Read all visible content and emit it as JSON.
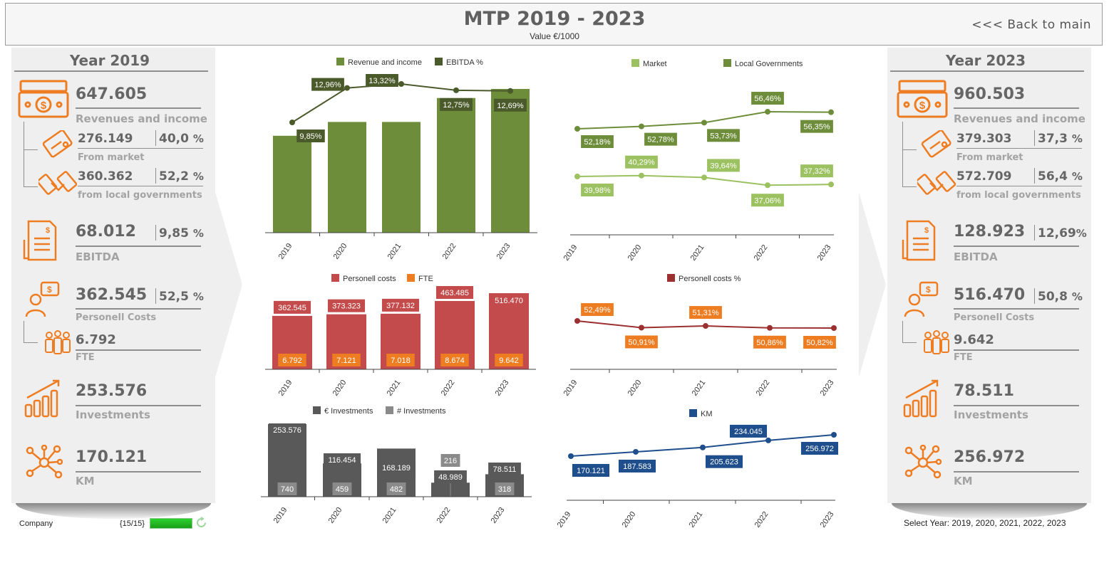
{
  "header": {
    "title": "MTP 2019 - 2023",
    "subtitle": "Value €/1000",
    "back": "<<< Back to main"
  },
  "left": {
    "year_title": "Year 2019",
    "revenues": "647.605",
    "revenues_label": "Revenues and income",
    "market": "276.149",
    "market_pct": "40,0",
    "market_label": "From market",
    "gov": "360.362",
    "gov_pct": "52,2",
    "gov_label": "from local governments",
    "ebitda": "68.012",
    "ebitda_pct": "9,85",
    "ebitda_label": "EBITDA",
    "personell": "362.545",
    "personell_pct": "52,5",
    "personell_label": "Personell Costs",
    "fte": "6.792",
    "fte_label": "FTE",
    "investments": "253.576",
    "investments_label": "Investments",
    "km": "170.121",
    "km_label": "KM",
    "pct_sign": "%"
  },
  "right": {
    "year_title": "Year 2023",
    "revenues": "960.503",
    "revenues_label": "Revenues and income",
    "market": "379.303",
    "market_pct": "37,3",
    "market_label": "From market",
    "gov": "572.709",
    "gov_pct": "56,4",
    "gov_label": "from local governments",
    "ebitda": "128.923",
    "ebitda_pct": "12,69",
    "ebitda_label": "EBITDA",
    "personell": "516.470",
    "personell_pct": "50,8",
    "personell_label": "Personell Costs",
    "fte": "9.642",
    "fte_label": "FTE",
    "investments": "78.511",
    "investments_label": "Investments",
    "km": "256.972",
    "km_label": "KM",
    "pct_sign": "%"
  },
  "footer": {
    "company": "Company",
    "counter": "{15/15}",
    "select_year": "Select Year: 2019, 2020, 2021, 2022, 2023"
  },
  "colors": {
    "accent_orange": "#ee7d22",
    "green_dark": "#6d8d3a",
    "green_light": "#9bc160",
    "red": "#c44b4b",
    "blue": "#1f4e8c",
    "gray_dark": "#595959"
  },
  "chart_data": [
    {
      "id": "revenue",
      "type": "bar",
      "categories": [
        "2019",
        "2020",
        "2021",
        "2022",
        "2023"
      ],
      "series": [
        {
          "name": "Revenue and income",
          "type": "bar",
          "values": [
            647.605,
            740,
            740,
            900,
            960.503
          ]
        },
        {
          "name": "EBITDA %",
          "type": "line",
          "values": [
            9.85,
            12.96,
            13.32,
            12.75,
            12.69
          ],
          "labels": [
            "9,85%",
            "12,96%",
            "13,32%",
            "12,75%",
            "12,69%"
          ]
        }
      ]
    },
    {
      "id": "market_gov",
      "type": "line",
      "categories": [
        "2019",
        "2020",
        "2021",
        "2022",
        "2023"
      ],
      "series": [
        {
          "name": "Market",
          "values": [
            39.98,
            40.29,
            39.64,
            37.06,
            37.32
          ],
          "labels": [
            "39,98%",
            "40,29%",
            "39,64%",
            "37,06%",
            "37,32%"
          ]
        },
        {
          "name": "Local Governments",
          "values": [
            52.18,
            52.78,
            53.73,
            56.46,
            56.35
          ],
          "labels": [
            "52,18%",
            "52,78%",
            "53,73%",
            "56,46%",
            "56,35%"
          ]
        }
      ]
    },
    {
      "id": "personell",
      "type": "bar",
      "categories": [
        "2019",
        "2020",
        "2021",
        "2022",
        "2023"
      ],
      "series": [
        {
          "name": "Personell costs",
          "values": [
            362545,
            373323,
            377132,
            463485,
            516470
          ],
          "labels": [
            "362.545",
            "373.323",
            "377.132",
            "463.485",
            "516.470"
          ]
        },
        {
          "name": "FTE",
          "values": [
            6792,
            7121,
            7018,
            8674,
            9642
          ],
          "labels": [
            "6.792",
            "7.121",
            "7.018",
            "8.674",
            "9.642"
          ]
        }
      ]
    },
    {
      "id": "personell_pct",
      "type": "line",
      "categories": [
        "2019",
        "2020",
        "2021",
        "2022",
        "2023"
      ],
      "series": [
        {
          "name": "Personell costs %",
          "values": [
            52.49,
            50.91,
            51.31,
            50.86,
            50.82
          ],
          "labels": [
            "52,49%",
            "50,91%",
            "51,31%",
            "50,86%",
            "50,82%"
          ]
        }
      ]
    },
    {
      "id": "investments",
      "type": "bar",
      "categories": [
        "2019",
        "2020",
        "2021",
        "2022",
        "2023"
      ],
      "series": [
        {
          "name": "€ Investments",
          "values": [
            253576,
            116454,
            168189,
            48989,
            78511
          ],
          "labels": [
            "253.576",
            "116.454",
            "168.189",
            "48.989",
            "78.511"
          ]
        },
        {
          "name": "# Investments",
          "values": [
            740,
            459,
            482,
            216,
            318
          ],
          "labels": [
            "740",
            "459",
            "482",
            "216",
            "318"
          ]
        }
      ]
    },
    {
      "id": "km",
      "type": "line",
      "categories": [
        "2019",
        "2020",
        "2021",
        "2022",
        "2023"
      ],
      "series": [
        {
          "name": "KM",
          "values": [
            170121,
            187583,
            205623,
            234045,
            256972
          ],
          "labels": [
            "170.121",
            "187.583",
            "205.623",
            "234.045",
            "256.972"
          ]
        }
      ]
    }
  ]
}
